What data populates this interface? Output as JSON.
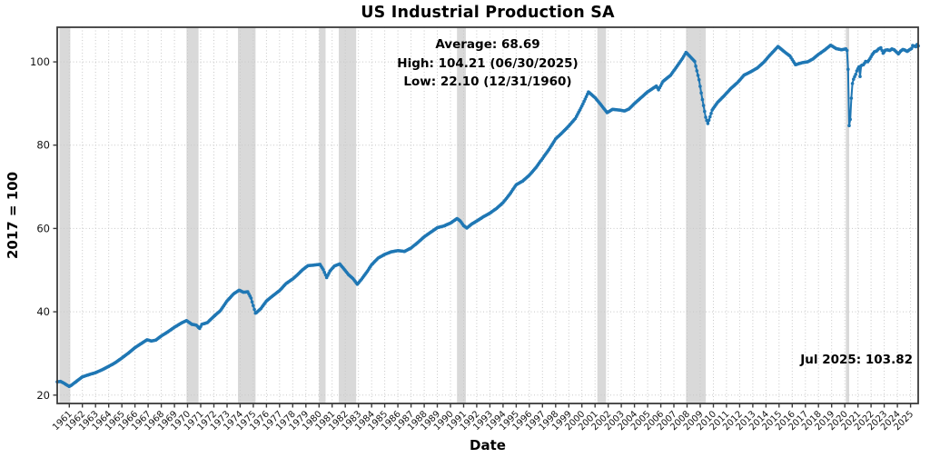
{
  "page": {
    "background": "#ffffff"
  },
  "header": {
    "title": "US Industrial Production SA"
  },
  "annotations": {
    "average": "Average: 68.69",
    "high": "High: 104.21 (06/30/2025)",
    "low": "Low: 22.10 (12/31/1960)",
    "last": "Jul 2025: 103.82"
  },
  "axes": {
    "x_label": "Date",
    "y_label": "2017 = 100"
  },
  "chart_data": {
    "type": "line",
    "title": "US Industrial Production SA",
    "xlabel": "Date",
    "ylabel": "2017 = 100",
    "x_ticks": [
      1961,
      1962,
      1963,
      1964,
      1965,
      1966,
      1967,
      1968,
      1969,
      1970,
      1971,
      1972,
      1973,
      1974,
      1975,
      1976,
      1977,
      1978,
      1979,
      1980,
      1981,
      1982,
      1983,
      1984,
      1985,
      1986,
      1987,
      1988,
      1989,
      1990,
      1991,
      1992,
      1993,
      1994,
      1995,
      1996,
      1997,
      1998,
      1999,
      2000,
      2001,
      2002,
      2003,
      2004,
      2005,
      2006,
      2007,
      2008,
      2009,
      2010,
      2011,
      2012,
      2013,
      2014,
      2015,
      2016,
      2017,
      2018,
      2019,
      2020,
      2021,
      2022,
      2023,
      2024,
      2025
    ],
    "y_ticks": [
      20,
      40,
      60,
      80,
      100
    ],
    "xlim": [
      1960.083,
      2025.583
    ],
    "ylim": [
      18.0,
      108.3
    ],
    "grid": true,
    "grid_style": "dotted",
    "legend": null,
    "line_color": "#1f77b4",
    "band_color": "#d9d9d9",
    "grid_color": "#c8c8c8",
    "spine_color": "#3b3b3b",
    "tick_text_color": "#141414",
    "stats": {
      "average": 68.69,
      "high": 104.21,
      "high_date": "06/30/2025",
      "low": 22.1,
      "low_date": "12/31/1960",
      "latest_label": "Jul 2025",
      "latest_value": 103.82
    },
    "recession_bands": [
      [
        1960.25,
        1961.08
      ],
      [
        1969.92,
        1970.83
      ],
      [
        1973.83,
        1975.17
      ],
      [
        1980.0,
        1980.5
      ],
      [
        1981.5,
        1982.83
      ],
      [
        1990.5,
        1991.17
      ],
      [
        2001.17,
        2001.83
      ],
      [
        2007.92,
        2009.42
      ],
      [
        2020.08,
        2020.33
      ]
    ],
    "frequency": "monthly (rendered by linear interpolation of keypoints)",
    "series": [
      {
        "name": "Industrial Production Index, SA (2017 = 100)",
        "keypoints": [
          [
            1960.08,
            23.2
          ],
          [
            1960.33,
            23.3
          ],
          [
            1960.58,
            22.9
          ],
          [
            1960.83,
            22.4
          ],
          [
            1961.0,
            22.1
          ],
          [
            1961.17,
            22.4
          ],
          [
            1961.58,
            23.4
          ],
          [
            1962.0,
            24.4
          ],
          [
            1962.58,
            25.0
          ],
          [
            1963.0,
            25.4
          ],
          [
            1963.5,
            26.1
          ],
          [
            1964.0,
            26.9
          ],
          [
            1964.5,
            27.8
          ],
          [
            1965.0,
            28.9
          ],
          [
            1965.5,
            30.1
          ],
          [
            1966.0,
            31.4
          ],
          [
            1966.58,
            32.6
          ],
          [
            1966.92,
            33.3
          ],
          [
            1967.25,
            33.0
          ],
          [
            1967.58,
            33.2
          ],
          [
            1968.0,
            34.2
          ],
          [
            1968.5,
            35.2
          ],
          [
            1969.0,
            36.3
          ],
          [
            1969.58,
            37.4
          ],
          [
            1969.92,
            37.9
          ],
          [
            1970.33,
            37.0
          ],
          [
            1970.67,
            36.8
          ],
          [
            1970.92,
            36.0
          ],
          [
            1971.08,
            37.0
          ],
          [
            1971.5,
            37.4
          ],
          [
            1972.0,
            38.9
          ],
          [
            1972.5,
            40.3
          ],
          [
            1973.0,
            42.6
          ],
          [
            1973.5,
            44.3
          ],
          [
            1973.92,
            45.2
          ],
          [
            1974.25,
            44.7
          ],
          [
            1974.58,
            44.8
          ],
          [
            1974.83,
            43.3
          ],
          [
            1975.17,
            39.6
          ],
          [
            1975.58,
            40.8
          ],
          [
            1976.0,
            42.6
          ],
          [
            1976.5,
            43.9
          ],
          [
            1977.0,
            45.1
          ],
          [
            1977.5,
            46.8
          ],
          [
            1978.0,
            47.9
          ],
          [
            1978.33,
            48.8
          ],
          [
            1978.75,
            50.1
          ],
          [
            1979.17,
            51.1
          ],
          [
            1979.58,
            51.2
          ],
          [
            1980.08,
            51.4
          ],
          [
            1980.33,
            50.1
          ],
          [
            1980.58,
            48.2
          ],
          [
            1980.83,
            49.8
          ],
          [
            1981.17,
            51.0
          ],
          [
            1981.58,
            51.5
          ],
          [
            1981.92,
            50.2
          ],
          [
            1982.25,
            48.9
          ],
          [
            1982.58,
            48.0
          ],
          [
            1982.92,
            46.6
          ],
          [
            1983.25,
            47.9
          ],
          [
            1983.67,
            49.7
          ],
          [
            1984.0,
            51.3
          ],
          [
            1984.5,
            52.9
          ],
          [
            1985.0,
            53.8
          ],
          [
            1985.5,
            54.4
          ],
          [
            1986.0,
            54.7
          ],
          [
            1986.5,
            54.5
          ],
          [
            1987.0,
            55.3
          ],
          [
            1987.5,
            56.6
          ],
          [
            1988.0,
            58.0
          ],
          [
            1988.5,
            59.1
          ],
          [
            1989.0,
            60.2
          ],
          [
            1989.5,
            60.6
          ],
          [
            1990.0,
            61.3
          ],
          [
            1990.5,
            62.4
          ],
          [
            1990.75,
            61.8
          ],
          [
            1991.0,
            60.7
          ],
          [
            1991.25,
            60.1
          ],
          [
            1991.58,
            61.0
          ],
          [
            1992.0,
            61.8
          ],
          [
            1992.5,
            62.8
          ],
          [
            1993.0,
            63.7
          ],
          [
            1993.5,
            64.8
          ],
          [
            1994.0,
            66.2
          ],
          [
            1994.5,
            68.2
          ],
          [
            1995.0,
            70.5
          ],
          [
            1995.5,
            71.4
          ],
          [
            1996.0,
            72.8
          ],
          [
            1996.5,
            74.6
          ],
          [
            1997.0,
            76.8
          ],
          [
            1997.5,
            79.0
          ],
          [
            1998.0,
            81.5
          ],
          [
            1998.5,
            83.0
          ],
          [
            1999.0,
            84.6
          ],
          [
            1999.5,
            86.4
          ],
          [
            2000.0,
            89.4
          ],
          [
            2000.5,
            92.8
          ],
          [
            2001.0,
            91.4
          ],
          [
            2001.42,
            89.8
          ],
          [
            2001.92,
            87.8
          ],
          [
            2002.33,
            88.6
          ],
          [
            2002.92,
            88.4
          ],
          [
            2003.25,
            88.2
          ],
          [
            2003.58,
            88.7
          ],
          [
            2004.0,
            90.0
          ],
          [
            2004.5,
            91.4
          ],
          [
            2005.0,
            92.8
          ],
          [
            2005.67,
            94.2
          ],
          [
            2005.83,
            93.3
          ],
          [
            2006.17,
            95.3
          ],
          [
            2006.75,
            96.8
          ],
          [
            2007.25,
            99.0
          ],
          [
            2007.67,
            100.9
          ],
          [
            2007.92,
            102.3
          ],
          [
            2008.25,
            101.2
          ],
          [
            2008.58,
            100.1
          ],
          [
            2008.75,
            97.8
          ],
          [
            2008.92,
            95.6
          ],
          [
            2009.17,
            90.8
          ],
          [
            2009.42,
            86.6
          ],
          [
            2009.58,
            85.2
          ],
          [
            2009.92,
            88.5
          ],
          [
            2010.33,
            90.3
          ],
          [
            2010.83,
            91.9
          ],
          [
            2011.33,
            93.6
          ],
          [
            2011.83,
            95.0
          ],
          [
            2012.33,
            96.8
          ],
          [
            2012.83,
            97.6
          ],
          [
            2013.33,
            98.5
          ],
          [
            2013.83,
            99.9
          ],
          [
            2014.33,
            101.7
          ],
          [
            2014.92,
            103.7
          ],
          [
            2015.33,
            102.6
          ],
          [
            2015.83,
            101.4
          ],
          [
            2016.25,
            99.3
          ],
          [
            2016.75,
            99.8
          ],
          [
            2017.17,
            100.0
          ],
          [
            2017.58,
            100.7
          ],
          [
            2018.0,
            101.8
          ],
          [
            2018.5,
            102.9
          ],
          [
            2018.92,
            104.0
          ],
          [
            2019.33,
            103.2
          ],
          [
            2019.75,
            102.9
          ],
          [
            2020.08,
            103.1
          ],
          [
            2020.17,
            102.7
          ],
          [
            2020.25,
            98.0
          ],
          [
            2020.33,
            84.7
          ],
          [
            2020.42,
            86.3
          ],
          [
            2020.5,
            91.5
          ],
          [
            2020.58,
            94.8
          ],
          [
            2020.67,
            95.9
          ],
          [
            2020.83,
            97.0
          ],
          [
            2020.92,
            97.9
          ],
          [
            2021.08,
            98.8
          ],
          [
            2021.17,
            96.3
          ],
          [
            2021.25,
            99.2
          ],
          [
            2021.42,
            99.3
          ],
          [
            2021.58,
            100.1
          ],
          [
            2021.75,
            100.0
          ],
          [
            2021.92,
            100.8
          ],
          [
            2022.08,
            101.7
          ],
          [
            2022.25,
            102.4
          ],
          [
            2022.42,
            102.6
          ],
          [
            2022.58,
            103.1
          ],
          [
            2022.75,
            103.4
          ],
          [
            2022.92,
            102.0
          ],
          [
            2023.08,
            102.8
          ],
          [
            2023.25,
            102.9
          ],
          [
            2023.42,
            102.7
          ],
          [
            2023.58,
            103.1
          ],
          [
            2023.75,
            102.9
          ],
          [
            2023.92,
            102.4
          ],
          [
            2024.08,
            101.9
          ],
          [
            2024.25,
            102.6
          ],
          [
            2024.42,
            103.0
          ],
          [
            2024.58,
            102.8
          ],
          [
            2024.75,
            102.5
          ],
          [
            2024.92,
            102.9
          ],
          [
            2025.08,
            103.2
          ],
          [
            2025.17,
            104.0
          ],
          [
            2025.25,
            103.7
          ],
          [
            2025.33,
            103.8
          ],
          [
            2025.42,
            103.6
          ],
          [
            2025.5,
            104.21
          ],
          [
            2025.58,
            103.82
          ]
        ]
      }
    ]
  }
}
